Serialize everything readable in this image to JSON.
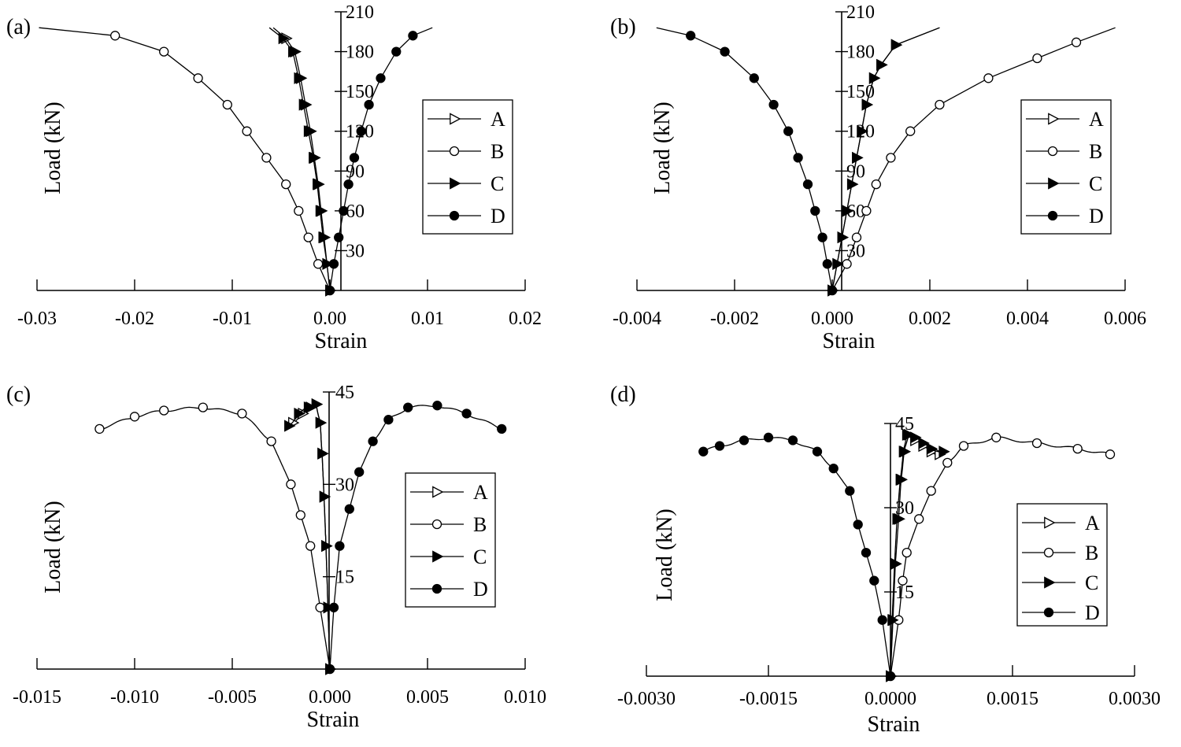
{
  "chart_data": [
    {
      "type": "line",
      "panel_label": "(a)",
      "xlabel": "Strain",
      "ylabel": "Load (kN)",
      "xlim": [
        -0.03,
        0.02
      ],
      "ylim": [
        0,
        210
      ],
      "x_ticks": [
        -0.03,
        -0.02,
        -0.01,
        0.0,
        0.01,
        0.02
      ],
      "x_tick_labels": [
        "-0.03",
        "-0.02",
        "-0.01",
        "0.00",
        "0.01",
        "0.02"
      ],
      "y_ticks": [
        30,
        60,
        90,
        120,
        150,
        180,
        210
      ],
      "y_tick_labels": [
        "30",
        "60",
        "90",
        "120",
        "150",
        "180",
        "210"
      ],
      "legend": [
        "A",
        "B",
        "C",
        "D"
      ],
      "series": [
        {
          "name": "A",
          "marker": "open-triangle",
          "x": [
            0,
            -0.0003,
            -0.0006,
            -0.0009,
            -0.0012,
            -0.0016,
            -0.002,
            -0.0025,
            -0.003,
            -0.0036,
            -0.0045,
            -0.0058
          ],
          "y": [
            0,
            20,
            40,
            60,
            80,
            100,
            120,
            140,
            160,
            180,
            190,
            198
          ]
        },
        {
          "name": "B",
          "marker": "open-circle",
          "x": [
            0,
            -0.0012,
            -0.0022,
            -0.0032,
            -0.0045,
            -0.0065,
            -0.0085,
            -0.0105,
            -0.0135,
            -0.017,
            -0.022,
            -0.0298
          ],
          "y": [
            0,
            20,
            40,
            60,
            80,
            100,
            120,
            140,
            160,
            180,
            192,
            198
          ]
        },
        {
          "name": "C",
          "marker": "filled-triangle",
          "x": [
            0,
            -0.0003,
            -0.0007,
            -0.001,
            -0.0013,
            -0.0017,
            -0.0022,
            -0.0027,
            -0.0032,
            -0.0038,
            -0.0048,
            -0.0062
          ],
          "y": [
            0,
            20,
            40,
            60,
            80,
            100,
            120,
            140,
            160,
            180,
            190,
            198
          ]
        },
        {
          "name": "D",
          "marker": "filled-circle",
          "x": [
            0,
            0.0004,
            0.0009,
            0.0014,
            0.0019,
            0.0025,
            0.0032,
            0.004,
            0.0052,
            0.0068,
            0.0085,
            0.0105
          ],
          "y": [
            0,
            20,
            40,
            60,
            80,
            100,
            120,
            140,
            160,
            180,
            192,
            198
          ]
        }
      ]
    },
    {
      "type": "line",
      "panel_label": "(b)",
      "xlabel": "Strain",
      "ylabel": "Load (kN)",
      "xlim": [
        -0.004,
        0.006
      ],
      "ylim": [
        0,
        210
      ],
      "x_ticks": [
        -0.004,
        -0.002,
        0.0,
        0.002,
        0.004,
        0.006
      ],
      "x_tick_labels": [
        "-0.004",
        "-0.002",
        "0.000",
        "0.002",
        "0.004",
        "0.006"
      ],
      "y_ticks": [
        30,
        60,
        90,
        120,
        150,
        180,
        210
      ],
      "y_tick_labels": [
        "30",
        "60",
        "90",
        "120",
        "150",
        "180",
        "210"
      ],
      "legend": [
        "A",
        "B",
        "C",
        "D"
      ],
      "series": [
        {
          "name": "A",
          "marker": "open-triangle",
          "x": [
            0,
            0.0001,
            0.0002,
            0.0003,
            0.0004,
            0.0005,
            0.0006,
            0.0007,
            0.00085,
            0.001,
            0.0013,
            0.0022
          ],
          "y": [
            0,
            20,
            40,
            60,
            80,
            100,
            120,
            140,
            160,
            170,
            185,
            198
          ]
        },
        {
          "name": "B",
          "marker": "open-circle",
          "x": [
            0,
            0.0003,
            0.0005,
            0.0007,
            0.0009,
            0.0012,
            0.0016,
            0.0022,
            0.0032,
            0.0042,
            0.005,
            0.0058
          ],
          "y": [
            0,
            20,
            40,
            60,
            80,
            100,
            120,
            140,
            160,
            175,
            187,
            198
          ]
        },
        {
          "name": "C",
          "marker": "filled-triangle",
          "x": [
            0,
            0.0001,
            0.0002,
            0.0003,
            0.0004,
            0.0005,
            0.0006,
            0.0007,
            0.00085,
            0.001,
            0.0013,
            0.0022
          ],
          "y": [
            0,
            20,
            40,
            60,
            80,
            100,
            120,
            140,
            160,
            170,
            185,
            198
          ]
        },
        {
          "name": "D",
          "marker": "filled-circle",
          "x": [
            0,
            -0.0001,
            -0.0002,
            -0.00035,
            -0.0005,
            -0.0007,
            -0.0009,
            -0.0012,
            -0.0016,
            -0.0022,
            -0.0029,
            -0.0036
          ],
          "y": [
            0,
            20,
            40,
            60,
            80,
            100,
            120,
            140,
            160,
            180,
            192,
            198
          ]
        }
      ]
    },
    {
      "type": "line",
      "panel_label": "(c)",
      "xlabel": "Strain",
      "ylabel": "Load (kN)",
      "xlim": [
        -0.015,
        0.01
      ],
      "ylim": [
        0,
        45
      ],
      "x_ticks": [
        -0.015,
        -0.01,
        -0.005,
        0.0,
        0.005,
        0.01
      ],
      "x_tick_labels": [
        "-0.015",
        "-0.010",
        "-0.005",
        "0.000",
        "0.005",
        "0.010"
      ],
      "y_ticks": [
        15,
        30,
        45
      ],
      "y_tick_labels": [
        "15",
        "30",
        "45"
      ],
      "legend": [
        "A",
        "B",
        "C",
        "D"
      ],
      "series": [
        {
          "name": "A",
          "marker": "open-triangle",
          "x": [
            0,
            -0.0001,
            -0.0002,
            -0.0003,
            -0.0004,
            -0.0005,
            -0.0007,
            -0.001,
            -0.0014,
            -0.0019
          ],
          "y": [
            0,
            10,
            20,
            28,
            35,
            40,
            43,
            42.5,
            41.5,
            40
          ]
        },
        {
          "name": "B",
          "marker": "open-circle",
          "x": [
            0,
            -0.0005,
            -0.001,
            -0.0015,
            -0.002,
            -0.003,
            -0.0045,
            -0.0065,
            -0.0085,
            -0.01,
            -0.0118
          ],
          "y": [
            0,
            10,
            20,
            25,
            30,
            37,
            41.5,
            42.5,
            42,
            41,
            39
          ]
        },
        {
          "name": "C",
          "marker": "filled-triangle",
          "x": [
            0,
            -0.0001,
            -0.0002,
            -0.0003,
            -0.0004,
            -0.0005,
            -0.0007,
            -0.0011,
            -0.0016,
            -0.0021
          ],
          "y": [
            0,
            10,
            20,
            28,
            35,
            40,
            43,
            42.5,
            41.5,
            39.5
          ]
        },
        {
          "name": "D",
          "marker": "filled-circle",
          "x": [
            0,
            0.0002,
            0.0005,
            0.001,
            0.0015,
            0.0022,
            0.003,
            0.004,
            0.0055,
            0.007,
            0.0088
          ],
          "y": [
            0,
            10,
            20,
            26,
            32,
            37,
            40.5,
            42.5,
            42.8,
            41.5,
            39
          ]
        }
      ]
    },
    {
      "type": "line",
      "panel_label": "(d)",
      "xlabel": "Strain",
      "ylabel": "Load (kN)",
      "xlim": [
        -0.003,
        0.003
      ],
      "ylim": [
        0,
        45
      ],
      "x_ticks": [
        -0.003,
        -0.0015,
        0.0,
        0.0015,
        0.003
      ],
      "x_tick_labels": [
        "-0.0030",
        "-0.0015",
        "0.0000",
        "0.0015",
        "0.0030"
      ],
      "y_ticks": [
        15,
        30,
        45
      ],
      "y_tick_labels": [
        "15",
        "30",
        "45"
      ],
      "legend": [
        "A",
        "B",
        "C",
        "D"
      ],
      "series": [
        {
          "name": "A",
          "marker": "open-triangle",
          "x": [
            0,
            3e-05,
            6e-05,
            0.0001,
            0.00013,
            0.00017,
            0.00022,
            0.0003,
            0.0004,
            0.0005,
            0.0006
          ],
          "y": [
            0,
            10,
            20,
            28,
            35,
            40,
            43,
            42,
            41,
            40,
            39.5
          ]
        },
        {
          "name": "B",
          "marker": "open-circle",
          "x": [
            0,
            0.0001,
            0.00015,
            0.0002,
            0.00035,
            0.0005,
            0.0007,
            0.0009,
            0.0013,
            0.0018,
            0.0023,
            0.0027
          ],
          "y": [
            0,
            10,
            17,
            22,
            28,
            33,
            38,
            41,
            42.5,
            41.5,
            40.5,
            39.5
          ]
        },
        {
          "name": "C",
          "marker": "filled-triangle",
          "x": [
            0,
            2e-05,
            5e-05,
            8e-05,
            0.00012,
            0.00016,
            0.0002,
            0.0003,
            0.0004,
            0.0005,
            0.00065
          ],
          "y": [
            0,
            10,
            20,
            28,
            35,
            40,
            43,
            42.5,
            41.5,
            40.5,
            40
          ]
        },
        {
          "name": "D",
          "marker": "filled-circle",
          "x": [
            0,
            -0.0001,
            -0.0002,
            -0.0003,
            -0.0004,
            -0.0005,
            -0.0007,
            -0.0009,
            -0.0012,
            -0.0015,
            -0.0018,
            -0.0021,
            -0.0023
          ],
          "y": [
            0,
            10,
            17,
            22,
            27,
            33,
            37,
            40,
            42,
            42.5,
            42,
            41,
            40
          ]
        }
      ]
    }
  ]
}
